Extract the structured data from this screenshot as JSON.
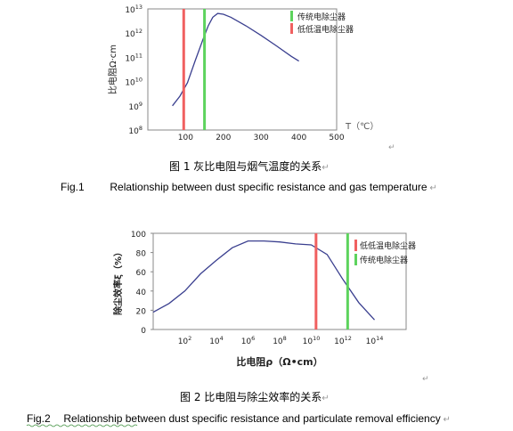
{
  "chart_data": [
    {
      "type": "line",
      "x_label": "T（℃）",
      "y_label": "比电阻Ω·cm",
      "x_ticks": [
        "100",
        "200",
        "300",
        "400",
        "500"
      ],
      "y_ticks": [
        "10^8",
        "10^9",
        "10^10",
        "10^11",
        "10^12",
        "10^13"
      ],
      "xlim": [
        0,
        500
      ],
      "y_scale": "log",
      "ylim": [
        100000000.0,
        10000000000000.0
      ],
      "grid": false,
      "legend_position": "top-right",
      "series": [
        {
          "name": "",
          "x": [
            65,
            85,
            105,
            125,
            145,
            160,
            172,
            185,
            200,
            220,
            260,
            300,
            340,
            380,
            400
          ],
          "y": [
            1000000000.0,
            2500000000.0,
            9000000000.0,
            70000000000.0,
            500000000000.0,
            2000000000000.0,
            4500000000000.0,
            6500000000000.0,
            6000000000000.0,
            4500000000000.0,
            2000000000000.0,
            800000000000.0,
            300000000000.0,
            110000000000.0,
            70000000000.0
          ],
          "color": "#3a3f8f"
        }
      ],
      "vlines": [
        {
          "name": "低低温电除尘器",
          "x": 95,
          "color": "#f06060"
        },
        {
          "name": "传统电除尘器",
          "x": 150,
          "color": "#5dd35d"
        }
      ]
    },
    {
      "type": "line",
      "x_label": "比电阻ρ（Ω•cm）",
      "y_label": "除尘效率ξ（%）",
      "x_ticks": [
        "10^2",
        "10^4",
        "10^6",
        "10^8",
        "10^10",
        "10^12",
        "10^14"
      ],
      "y_ticks": [
        "0",
        "20",
        "40",
        "60",
        "80",
        "100"
      ],
      "x_scale": "log",
      "xlim": [
        1,
        1e+16
      ],
      "ylim": [
        0,
        100
      ],
      "grid": false,
      "legend_position": "top-right",
      "series": [
        {
          "name": "",
          "x": [
            1,
            10,
            100.0,
            1000.0,
            10000.0,
            100000.0,
            1000000.0,
            10000000.0,
            100000000.0,
            1000000000.0,
            10000000000.0,
            10000000000.0,
            100000000000.0,
            1000000000000.0,
            10000000000000.0,
            100000000000000.0
          ],
          "y": [
            18,
            27,
            40,
            58,
            72,
            85,
            92,
            92,
            91,
            89,
            88,
            88,
            78,
            52,
            28,
            10
          ],
          "color": "#3a3f8f"
        }
      ],
      "vlines": [
        {
          "name": "低低温电除尘器",
          "x": 20000000000.0,
          "color": "#f06060"
        },
        {
          "name": "传统电除尘器",
          "x": 2000000000000.0,
          "color": "#5dd35d"
        }
      ]
    }
  ],
  "captions": {
    "fig1_zh": "图 1  灰比电阻与烟气温度的关系",
    "fig1_en_num": "Fig.1",
    "fig1_en": "Relationship between dust specific resistance and gas temperature",
    "fig2_zh": "图 2  比电阻与除尘效率的关系",
    "fig2_en_num": "Fig.2",
    "fig2_en": "Relationship between dust specific resistance and particulate removal efficiency"
  }
}
